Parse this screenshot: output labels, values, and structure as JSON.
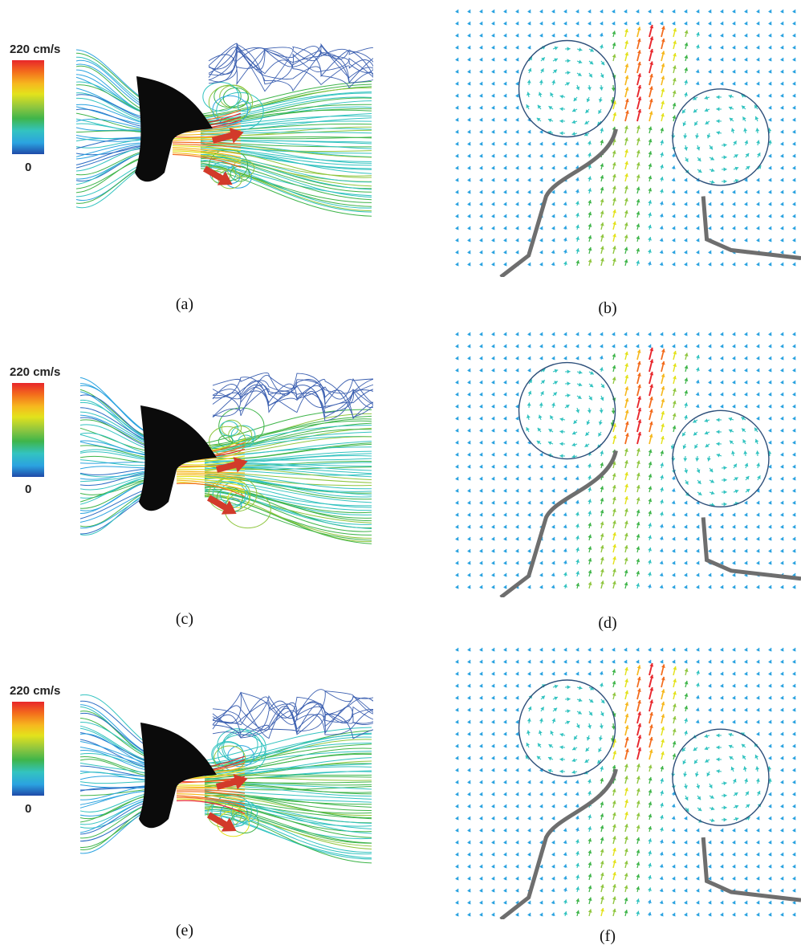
{
  "colorbar": {
    "max_label": "220 cm/s",
    "min_label": "0",
    "colors": [
      "#e8262b",
      "#f6b81e",
      "#3fb54a",
      "#2ba3e0",
      "#1f4aa8"
    ]
  },
  "panels": [
    {
      "caption": "(a)",
      "kind": "streamlines"
    },
    {
      "caption": "(b)",
      "kind": "vector-field"
    },
    {
      "caption": "(c)",
      "kind": "streamlines"
    },
    {
      "caption": "(d)",
      "kind": "vector-field"
    },
    {
      "caption": "(e)",
      "kind": "streamlines"
    },
    {
      "caption": "(f)",
      "kind": "vector-field"
    }
  ]
}
